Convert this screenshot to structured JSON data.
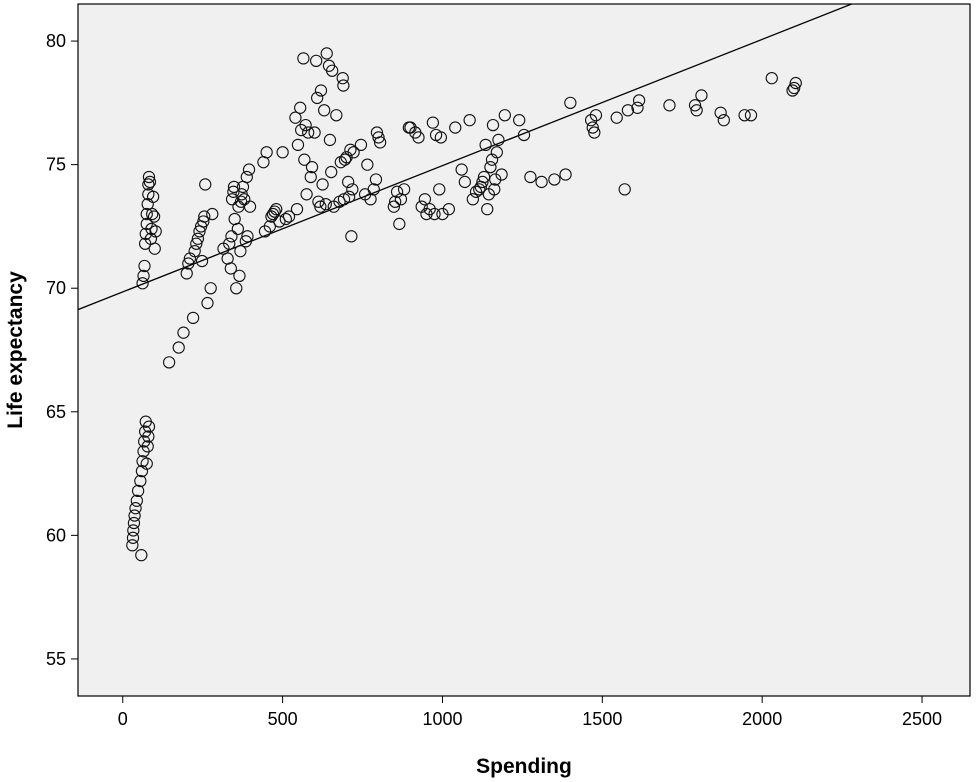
{
  "chart_data": {
    "type": "scatter",
    "title": "",
    "xlabel": "Spending",
    "ylabel": "Life expectancy",
    "xlim": [
      -140,
      2650
    ],
    "ylim": [
      53.5,
      81.5
    ],
    "xticks": [
      "0",
      "500",
      "1000",
      "1500",
      "2000",
      "2500"
    ],
    "xtick_values": [
      0,
      500,
      1000,
      1500,
      2000,
      2500
    ],
    "yticks": [
      "55",
      "60",
      "65",
      "70",
      "75",
      "80"
    ],
    "ytick_values": [
      55,
      60,
      65,
      70,
      75,
      80
    ],
    "grid": false,
    "legend": "none",
    "background_color": "#f0f0f0",
    "marker": "hollow-circle",
    "fit_line": {
      "type": "linear",
      "intercept": 69.85,
      "slope": 0.00511
    },
    "points": [
      [
        30,
        59.6
      ],
      [
        32,
        59.9
      ],
      [
        33,
        60.2
      ],
      [
        35,
        60.5
      ],
      [
        37,
        60.8
      ],
      [
        40,
        61.1
      ],
      [
        44,
        61.4
      ],
      [
        48,
        61.8
      ],
      [
        55,
        62.2
      ],
      [
        58,
        59.2
      ],
      [
        60,
        62.6
      ],
      [
        62,
        63.0
      ],
      [
        65,
        63.4
      ],
      [
        67,
        63.8
      ],
      [
        70,
        64.2
      ],
      [
        72,
        64.6
      ],
      [
        75,
        62.9
      ],
      [
        78,
        63.6
      ],
      [
        80,
        64.0
      ],
      [
        82,
        64.4
      ],
      [
        62,
        70.2
      ],
      [
        65,
        70.5
      ],
      [
        68,
        70.9
      ],
      [
        70,
        71.8
      ],
      [
        72,
        72.2
      ],
      [
        75,
        72.6
      ],
      [
        75,
        73.0
      ],
      [
        78,
        73.4
      ],
      [
        80,
        73.8
      ],
      [
        80,
        74.2
      ],
      [
        82,
        74.5
      ],
      [
        85,
        74.3
      ],
      [
        88,
        72.0
      ],
      [
        90,
        72.4
      ],
      [
        92,
        73.0
      ],
      [
        95,
        73.7
      ],
      [
        98,
        72.9
      ],
      [
        100,
        71.6
      ],
      [
        103,
        72.3
      ],
      [
        145,
        67.0
      ],
      [
        175,
        67.6
      ],
      [
        190,
        68.2
      ],
      [
        200,
        70.6
      ],
      [
        205,
        71.0
      ],
      [
        210,
        71.2
      ],
      [
        220,
        68.8
      ],
      [
        225,
        71.5
      ],
      [
        230,
        71.8
      ],
      [
        235,
        72.0
      ],
      [
        240,
        72.3
      ],
      [
        245,
        72.5
      ],
      [
        248,
        71.1
      ],
      [
        252,
        72.7
      ],
      [
        255,
        72.9
      ],
      [
        258,
        74.2
      ],
      [
        265,
        69.4
      ],
      [
        275,
        70.0
      ],
      [
        280,
        73.0
      ],
      [
        315,
        71.6
      ],
      [
        328,
        71.2
      ],
      [
        333,
        71.8
      ],
      [
        338,
        70.8
      ],
      [
        340,
        72.1
      ],
      [
        342,
        73.6
      ],
      [
        346,
        73.9
      ],
      [
        348,
        74.1
      ],
      [
        350,
        72.8
      ],
      [
        355,
        70.0
      ],
      [
        360,
        72.4
      ],
      [
        362,
        73.3
      ],
      [
        365,
        70.5
      ],
      [
        368,
        71.5
      ],
      [
        370,
        73.5
      ],
      [
        372,
        73.8
      ],
      [
        376,
        74.1
      ],
      [
        380,
        73.6
      ],
      [
        385,
        71.9
      ],
      [
        388,
        74.5
      ],
      [
        390,
        72.1
      ],
      [
        395,
        74.8
      ],
      [
        398,
        73.3
      ],
      [
        440,
        75.1
      ],
      [
        445,
        72.3
      ],
      [
        450,
        75.5
      ],
      [
        460,
        72.5
      ],
      [
        465,
        72.9
      ],
      [
        470,
        73.0
      ],
      [
        475,
        73.1
      ],
      [
        480,
        73.2
      ],
      [
        490,
        72.7
      ],
      [
        500,
        75.5
      ],
      [
        510,
        72.8
      ],
      [
        520,
        72.9
      ],
      [
        540,
        76.9
      ],
      [
        545,
        73.2
      ],
      [
        548,
        75.8
      ],
      [
        555,
        77.3
      ],
      [
        558,
        76.4
      ],
      [
        565,
        79.3
      ],
      [
        568,
        75.2
      ],
      [
        572,
        76.6
      ],
      [
        575,
        73.8
      ],
      [
        580,
        76.3
      ],
      [
        588,
        74.5
      ],
      [
        592,
        74.9
      ],
      [
        600,
        76.3
      ],
      [
        605,
        79.2
      ],
      [
        608,
        77.7
      ],
      [
        612,
        73.5
      ],
      [
        618,
        73.3
      ],
      [
        620,
        78.0
      ],
      [
        625,
        74.2
      ],
      [
        630,
        77.2
      ],
      [
        635,
        73.4
      ],
      [
        638,
        79.5
      ],
      [
        645,
        79.0
      ],
      [
        648,
        76.0
      ],
      [
        652,
        74.7
      ],
      [
        655,
        78.8
      ],
      [
        660,
        73.3
      ],
      [
        668,
        77.0
      ],
      [
        678,
        73.5
      ],
      [
        682,
        75.1
      ],
      [
        688,
        78.5
      ],
      [
        690,
        78.2
      ],
      [
        692,
        73.6
      ],
      [
        695,
        75.2
      ],
      [
        700,
        75.3
      ],
      [
        705,
        74.3
      ],
      [
        708,
        73.7
      ],
      [
        712,
        75.6
      ],
      [
        715,
        72.1
      ],
      [
        718,
        74.0
      ],
      [
        722,
        75.5
      ],
      [
        745,
        75.8
      ],
      [
        758,
        73.8
      ],
      [
        765,
        75.0
      ],
      [
        775,
        73.6
      ],
      [
        785,
        74.0
      ],
      [
        792,
        74.4
      ],
      [
        795,
        76.3
      ],
      [
        800,
        76.1
      ],
      [
        805,
        75.9
      ],
      [
        848,
        73.3
      ],
      [
        852,
        73.5
      ],
      [
        858,
        73.9
      ],
      [
        865,
        72.6
      ],
      [
        870,
        73.6
      ],
      [
        880,
        74.0
      ],
      [
        895,
        76.5
      ],
      [
        900,
        76.5
      ],
      [
        915,
        76.3
      ],
      [
        925,
        76.1
      ],
      [
        935,
        73.3
      ],
      [
        945,
        73.6
      ],
      [
        950,
        73.0
      ],
      [
        960,
        73.2
      ],
      [
        970,
        76.7
      ],
      [
        975,
        73.0
      ],
      [
        980,
        76.2
      ],
      [
        990,
        74.0
      ],
      [
        995,
        76.1
      ],
      [
        1000,
        73.0
      ],
      [
        1020,
        73.2
      ],
      [
        1040,
        76.5
      ],
      [
        1060,
        74.8
      ],
      [
        1070,
        74.3
      ],
      [
        1085,
        76.8
      ],
      [
        1095,
        73.6
      ],
      [
        1105,
        73.9
      ],
      [
        1115,
        74.0
      ],
      [
        1120,
        74.1
      ],
      [
        1125,
        74.3
      ],
      [
        1130,
        74.5
      ],
      [
        1135,
        75.8
      ],
      [
        1140,
        73.2
      ],
      [
        1145,
        73.8
      ],
      [
        1150,
        74.9
      ],
      [
        1155,
        75.2
      ],
      [
        1158,
        76.6
      ],
      [
        1162,
        74.0
      ],
      [
        1165,
        74.4
      ],
      [
        1170,
        75.5
      ],
      [
        1175,
        76.0
      ],
      [
        1185,
        74.6
      ],
      [
        1195,
        77.0
      ],
      [
        1240,
        76.8
      ],
      [
        1255,
        76.2
      ],
      [
        1275,
        74.5
      ],
      [
        1310,
        74.3
      ],
      [
        1350,
        74.4
      ],
      [
        1385,
        74.6
      ],
      [
        1400,
        77.5
      ],
      [
        1465,
        76.8
      ],
      [
        1470,
        76.5
      ],
      [
        1475,
        76.3
      ],
      [
        1480,
        77.0
      ],
      [
        1545,
        76.9
      ],
      [
        1570,
        74.0
      ],
      [
        1580,
        77.2
      ],
      [
        1610,
        77.3
      ],
      [
        1615,
        77.6
      ],
      [
        1710,
        77.4
      ],
      [
        1790,
        77.4
      ],
      [
        1795,
        77.2
      ],
      [
        1810,
        77.8
      ],
      [
        1870,
        77.1
      ],
      [
        1880,
        76.8
      ],
      [
        1945,
        77.0
      ],
      [
        1965,
        77.0
      ],
      [
        2030,
        78.5
      ],
      [
        2095,
        78.0
      ],
      [
        2100,
        78.1
      ],
      [
        2105,
        78.3
      ]
    ]
  }
}
